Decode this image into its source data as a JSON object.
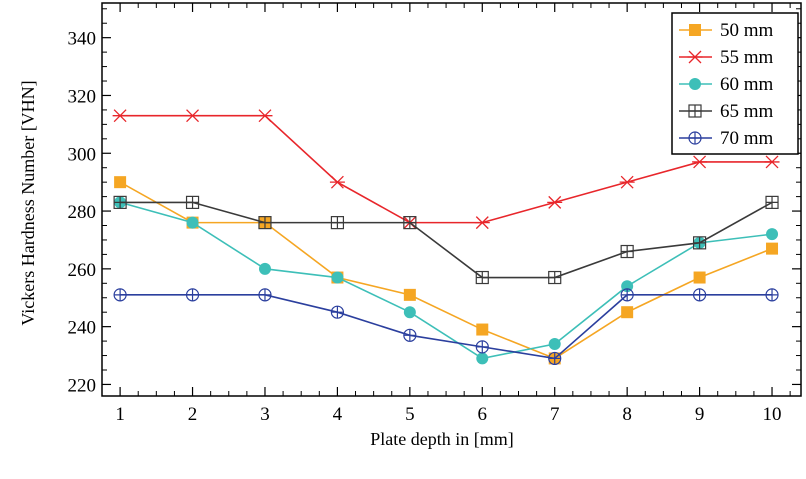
{
  "chart_data": {
    "type": "line",
    "title": "",
    "xlabel": "Plate depth in [mm]",
    "ylabel": "Vickers Hardness Number [VHN]",
    "xlim": [
      0.75,
      10.4
    ],
    "ylim": [
      216,
      352
    ],
    "x": [
      1,
      2,
      3,
      4,
      5,
      6,
      7,
      8,
      9,
      10
    ],
    "x_ticks": [
      "1",
      "2",
      "3",
      "4",
      "5",
      "6",
      "7",
      "8",
      "9",
      "10"
    ],
    "y_ticks": [
      "220",
      "240",
      "260",
      "280",
      "300",
      "320",
      "340"
    ],
    "y_tick_values": [
      220,
      240,
      260,
      280,
      300,
      320,
      340
    ],
    "grid": false,
    "legend_position": "top-right",
    "series": [
      {
        "name": "50 mm",
        "color": "#f5a623",
        "marker": "square",
        "values": [
          290,
          276,
          276,
          257,
          251,
          239,
          229,
          245,
          257,
          267
        ]
      },
      {
        "name": "55 mm",
        "color": "#e8262b",
        "marker": "asterisk",
        "values": [
          313,
          313,
          313,
          290,
          276,
          276,
          283,
          290,
          297,
          297
        ]
      },
      {
        "name": "60 mm",
        "color": "#3dbfb8",
        "marker": "circle",
        "values": [
          283,
          276,
          260,
          257,
          245,
          229,
          234,
          254,
          269,
          272
        ]
      },
      {
        "name": "65 mm",
        "color": "#3a3a3a",
        "marker": "boxed-plus",
        "values": [
          283,
          283,
          276,
          276,
          276,
          257,
          257,
          266,
          269,
          283
        ]
      },
      {
        "name": "70 mm",
        "color": "#2b3f9e",
        "marker": "circled-plus",
        "values": [
          251,
          251,
          251,
          245,
          237,
          233,
          229,
          251,
          251,
          251
        ]
      }
    ]
  }
}
